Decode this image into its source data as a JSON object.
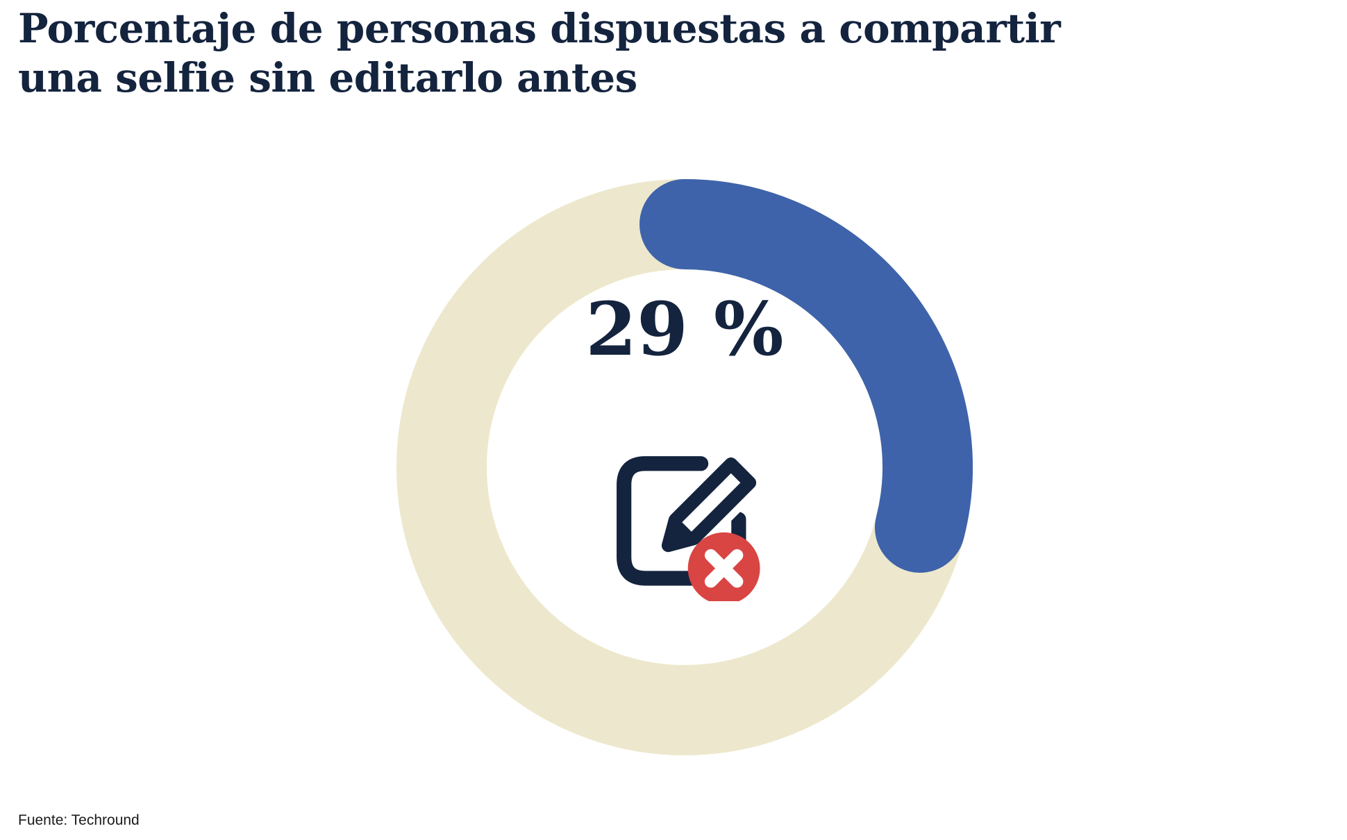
{
  "chart": {
    "title": "Porcentaje de personas dispuestas a compartir una selfie sin editarlo antes",
    "value_label": "29 %",
    "source": "Fuente: Techround"
  },
  "chart_data": {
    "type": "pie",
    "subtype": "donut-progress",
    "title": "Porcentaje de personas dispuestas a compartir una selfie sin editarlo antes",
    "value": 29,
    "max": 100,
    "unit": "%",
    "center_label": "29 %",
    "center_icon": "edit-pencil-square-with-cancel-badge",
    "source": "Fuente: Techround",
    "start_angle_deg": 0,
    "direction": "clockwise",
    "legend": false,
    "colors": {
      "progress": "#3e63aa",
      "track": "#ede8cd",
      "text": "#14243e",
      "icon": "#14243e",
      "badge": "#d94543"
    }
  }
}
